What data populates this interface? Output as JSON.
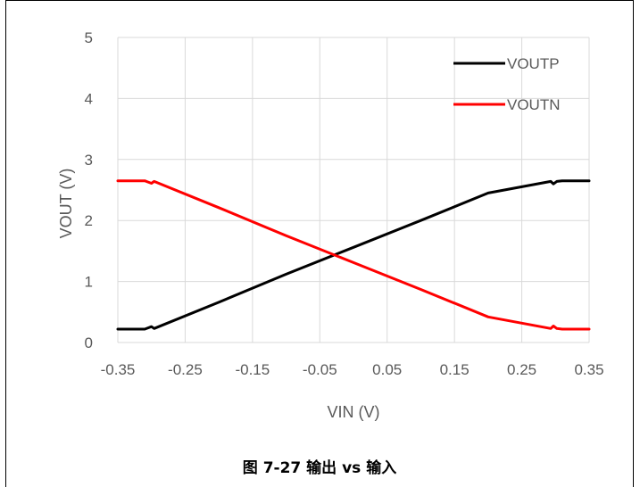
{
  "caption": "图 7-27 输出 vs 输入",
  "chart_data": {
    "type": "line",
    "xlabel": "VIN (V)",
    "ylabel": "VOUT (V)",
    "xlim": [
      -0.35,
      0.35
    ],
    "ylim": [
      0,
      5
    ],
    "x_ticks": [
      -0.35,
      -0.25,
      -0.15,
      -0.05,
      0.05,
      0.15,
      0.25,
      0.35
    ],
    "x_tick_labels": [
      "-0.35",
      "-0.25",
      "-0.15",
      "-0.05",
      "0.05",
      "0.15",
      "0.25",
      "0.35"
    ],
    "y_ticks": [
      0,
      1,
      2,
      3,
      4,
      5
    ],
    "y_tick_labels": [
      "0",
      "1",
      "2",
      "3",
      "4",
      "5"
    ],
    "grid": true,
    "legend_position": "top-right",
    "series": [
      {
        "name": "VOUTP",
        "color": "#000000",
        "x": [
          -0.35,
          -0.31,
          -0.305,
          -0.3,
          -0.296,
          -0.2,
          -0.1,
          0.0,
          0.1,
          0.2,
          0.293,
          0.297,
          0.302,
          0.31,
          0.35
        ],
        "y": [
          0.22,
          0.22,
          0.24,
          0.26,
          0.23,
          0.66,
          1.12,
          1.56,
          2.0,
          2.45,
          2.64,
          2.6,
          2.64,
          2.65,
          2.65
        ]
      },
      {
        "name": "VOUTN",
        "color": "#ff0000",
        "x": [
          -0.35,
          -0.31,
          -0.305,
          -0.3,
          -0.296,
          -0.2,
          -0.1,
          0.0,
          0.1,
          0.2,
          0.293,
          0.297,
          0.302,
          0.31,
          0.35
        ],
        "y": [
          2.65,
          2.65,
          2.63,
          2.61,
          2.64,
          2.21,
          1.75,
          1.31,
          0.87,
          0.42,
          0.23,
          0.27,
          0.23,
          0.22,
          0.22
        ]
      }
    ]
  }
}
